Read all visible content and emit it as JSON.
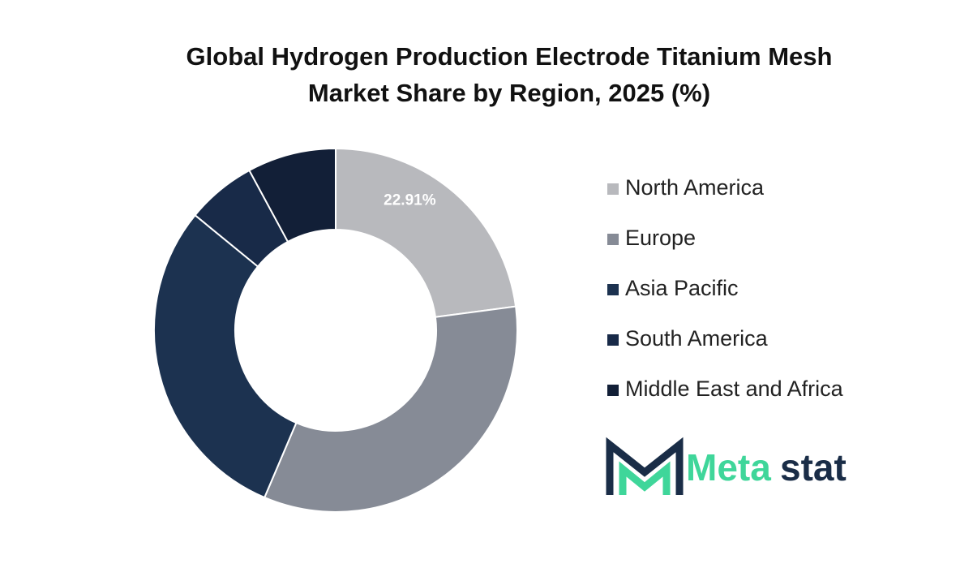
{
  "chart_data": {
    "type": "donut",
    "title": [
      "Global Hydrogen Production Electrode Titanium Mesh",
      "Market Share by Region, 2025 (%)"
    ],
    "categories": [
      "North America",
      "Europe",
      "Asia Pacific",
      "South America",
      "Middle East and Africa"
    ],
    "values": [
      22.91,
      33.5,
      29.5,
      6.2,
      7.89
    ],
    "value_labels": [
      "22.91%",
      null,
      null,
      null,
      null
    ],
    "colors": [
      "#b8b9bd",
      "#868b96",
      "#1c3250",
      "#182a48",
      "#121f37"
    ],
    "legend": "right"
  },
  "logo": [
    "Meta",
    "stat"
  ]
}
